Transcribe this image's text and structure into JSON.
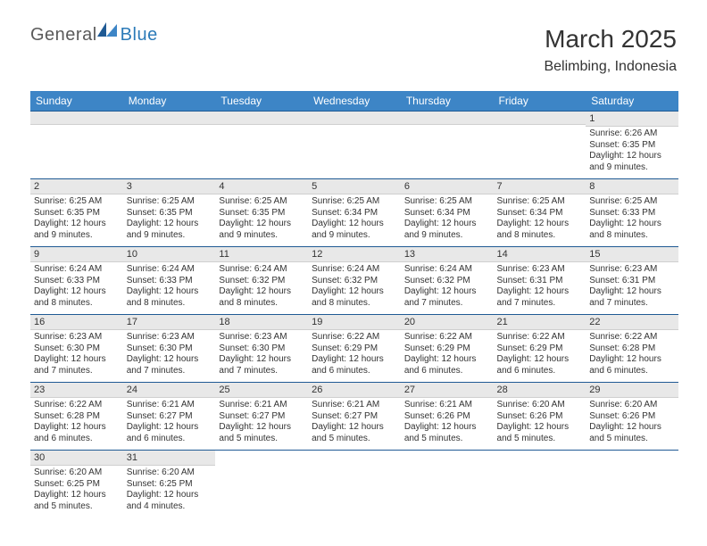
{
  "logo": {
    "general": "General",
    "blue": "Blue"
  },
  "title": "March 2025",
  "location": "Belimbing, Indonesia",
  "colors": {
    "header_bg": "#3d85c6",
    "header_text": "#ffffff",
    "daynum_bg": "#e8e8e8",
    "cell_border": "#1f5a94",
    "logo_gray": "#5a5a5a",
    "logo_blue": "#2b7ab8"
  },
  "weekdays": [
    "Sunday",
    "Monday",
    "Tuesday",
    "Wednesday",
    "Thursday",
    "Friday",
    "Saturday"
  ],
  "weeks": [
    [
      {
        "num": "",
        "sunrise": "",
        "sunset": "",
        "daylight": ""
      },
      {
        "num": "",
        "sunrise": "",
        "sunset": "",
        "daylight": ""
      },
      {
        "num": "",
        "sunrise": "",
        "sunset": "",
        "daylight": ""
      },
      {
        "num": "",
        "sunrise": "",
        "sunset": "",
        "daylight": ""
      },
      {
        "num": "",
        "sunrise": "",
        "sunset": "",
        "daylight": ""
      },
      {
        "num": "",
        "sunrise": "",
        "sunset": "",
        "daylight": ""
      },
      {
        "num": "1",
        "sunrise": "Sunrise: 6:26 AM",
        "sunset": "Sunset: 6:35 PM",
        "daylight": "Daylight: 12 hours and 9 minutes."
      }
    ],
    [
      {
        "num": "2",
        "sunrise": "Sunrise: 6:25 AM",
        "sunset": "Sunset: 6:35 PM",
        "daylight": "Daylight: 12 hours and 9 minutes."
      },
      {
        "num": "3",
        "sunrise": "Sunrise: 6:25 AM",
        "sunset": "Sunset: 6:35 PM",
        "daylight": "Daylight: 12 hours and 9 minutes."
      },
      {
        "num": "4",
        "sunrise": "Sunrise: 6:25 AM",
        "sunset": "Sunset: 6:35 PM",
        "daylight": "Daylight: 12 hours and 9 minutes."
      },
      {
        "num": "5",
        "sunrise": "Sunrise: 6:25 AM",
        "sunset": "Sunset: 6:34 PM",
        "daylight": "Daylight: 12 hours and 9 minutes."
      },
      {
        "num": "6",
        "sunrise": "Sunrise: 6:25 AM",
        "sunset": "Sunset: 6:34 PM",
        "daylight": "Daylight: 12 hours and 9 minutes."
      },
      {
        "num": "7",
        "sunrise": "Sunrise: 6:25 AM",
        "sunset": "Sunset: 6:34 PM",
        "daylight": "Daylight: 12 hours and 8 minutes."
      },
      {
        "num": "8",
        "sunrise": "Sunrise: 6:25 AM",
        "sunset": "Sunset: 6:33 PM",
        "daylight": "Daylight: 12 hours and 8 minutes."
      }
    ],
    [
      {
        "num": "9",
        "sunrise": "Sunrise: 6:24 AM",
        "sunset": "Sunset: 6:33 PM",
        "daylight": "Daylight: 12 hours and 8 minutes."
      },
      {
        "num": "10",
        "sunrise": "Sunrise: 6:24 AM",
        "sunset": "Sunset: 6:33 PM",
        "daylight": "Daylight: 12 hours and 8 minutes."
      },
      {
        "num": "11",
        "sunrise": "Sunrise: 6:24 AM",
        "sunset": "Sunset: 6:32 PM",
        "daylight": "Daylight: 12 hours and 8 minutes."
      },
      {
        "num": "12",
        "sunrise": "Sunrise: 6:24 AM",
        "sunset": "Sunset: 6:32 PM",
        "daylight": "Daylight: 12 hours and 8 minutes."
      },
      {
        "num": "13",
        "sunrise": "Sunrise: 6:24 AM",
        "sunset": "Sunset: 6:32 PM",
        "daylight": "Daylight: 12 hours and 7 minutes."
      },
      {
        "num": "14",
        "sunrise": "Sunrise: 6:23 AM",
        "sunset": "Sunset: 6:31 PM",
        "daylight": "Daylight: 12 hours and 7 minutes."
      },
      {
        "num": "15",
        "sunrise": "Sunrise: 6:23 AM",
        "sunset": "Sunset: 6:31 PM",
        "daylight": "Daylight: 12 hours and 7 minutes."
      }
    ],
    [
      {
        "num": "16",
        "sunrise": "Sunrise: 6:23 AM",
        "sunset": "Sunset: 6:30 PM",
        "daylight": "Daylight: 12 hours and 7 minutes."
      },
      {
        "num": "17",
        "sunrise": "Sunrise: 6:23 AM",
        "sunset": "Sunset: 6:30 PM",
        "daylight": "Daylight: 12 hours and 7 minutes."
      },
      {
        "num": "18",
        "sunrise": "Sunrise: 6:23 AM",
        "sunset": "Sunset: 6:30 PM",
        "daylight": "Daylight: 12 hours and 7 minutes."
      },
      {
        "num": "19",
        "sunrise": "Sunrise: 6:22 AM",
        "sunset": "Sunset: 6:29 PM",
        "daylight": "Daylight: 12 hours and 6 minutes."
      },
      {
        "num": "20",
        "sunrise": "Sunrise: 6:22 AM",
        "sunset": "Sunset: 6:29 PM",
        "daylight": "Daylight: 12 hours and 6 minutes."
      },
      {
        "num": "21",
        "sunrise": "Sunrise: 6:22 AM",
        "sunset": "Sunset: 6:29 PM",
        "daylight": "Daylight: 12 hours and 6 minutes."
      },
      {
        "num": "22",
        "sunrise": "Sunrise: 6:22 AM",
        "sunset": "Sunset: 6:28 PM",
        "daylight": "Daylight: 12 hours and 6 minutes."
      }
    ],
    [
      {
        "num": "23",
        "sunrise": "Sunrise: 6:22 AM",
        "sunset": "Sunset: 6:28 PM",
        "daylight": "Daylight: 12 hours and 6 minutes."
      },
      {
        "num": "24",
        "sunrise": "Sunrise: 6:21 AM",
        "sunset": "Sunset: 6:27 PM",
        "daylight": "Daylight: 12 hours and 6 minutes."
      },
      {
        "num": "25",
        "sunrise": "Sunrise: 6:21 AM",
        "sunset": "Sunset: 6:27 PM",
        "daylight": "Daylight: 12 hours and 5 minutes."
      },
      {
        "num": "26",
        "sunrise": "Sunrise: 6:21 AM",
        "sunset": "Sunset: 6:27 PM",
        "daylight": "Daylight: 12 hours and 5 minutes."
      },
      {
        "num": "27",
        "sunrise": "Sunrise: 6:21 AM",
        "sunset": "Sunset: 6:26 PM",
        "daylight": "Daylight: 12 hours and 5 minutes."
      },
      {
        "num": "28",
        "sunrise": "Sunrise: 6:20 AM",
        "sunset": "Sunset: 6:26 PM",
        "daylight": "Daylight: 12 hours and 5 minutes."
      },
      {
        "num": "29",
        "sunrise": "Sunrise: 6:20 AM",
        "sunset": "Sunset: 6:26 PM",
        "daylight": "Daylight: 12 hours and 5 minutes."
      }
    ],
    [
      {
        "num": "30",
        "sunrise": "Sunrise: 6:20 AM",
        "sunset": "Sunset: 6:25 PM",
        "daylight": "Daylight: 12 hours and 5 minutes."
      },
      {
        "num": "31",
        "sunrise": "Sunrise: 6:20 AM",
        "sunset": "Sunset: 6:25 PM",
        "daylight": "Daylight: 12 hours and 4 minutes."
      },
      {
        "num": "",
        "sunrise": "",
        "sunset": "",
        "daylight": ""
      },
      {
        "num": "",
        "sunrise": "",
        "sunset": "",
        "daylight": ""
      },
      {
        "num": "",
        "sunrise": "",
        "sunset": "",
        "daylight": ""
      },
      {
        "num": "",
        "sunrise": "",
        "sunset": "",
        "daylight": ""
      },
      {
        "num": "",
        "sunrise": "",
        "sunset": "",
        "daylight": ""
      }
    ]
  ]
}
